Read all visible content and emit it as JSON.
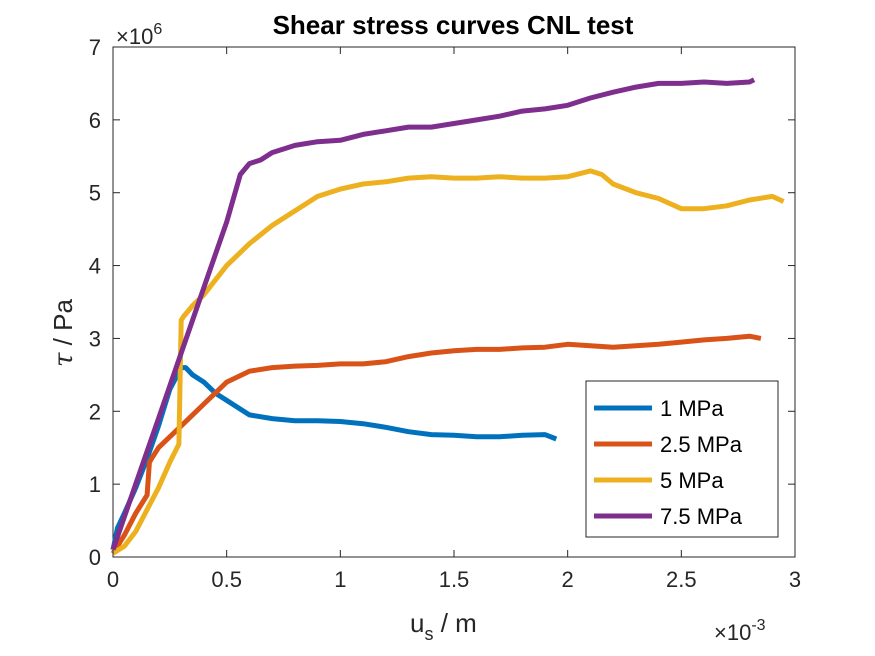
{
  "chart_data": {
    "type": "line",
    "title": "Shear stress curves CNL test",
    "xlabel_main": "u",
    "xlabel_sub": "s",
    "xlabel_rest": " / m",
    "ylabel_symbol": "τ",
    "ylabel_rest": " / Pa",
    "x_multiplier": {
      "base": "×10",
      "exp": "-3"
    },
    "y_multiplier": {
      "base": "×10",
      "exp": "6"
    },
    "xlim": [
      0,
      3
    ],
    "ylim": [
      0,
      7
    ],
    "xticks": [
      0,
      0.5,
      1,
      1.5,
      2,
      2.5,
      3
    ],
    "xtick_labels": [
      "0",
      "0.5",
      "1",
      "1.5",
      "2",
      "2.5",
      "3"
    ],
    "yticks": [
      0,
      1,
      2,
      3,
      4,
      5,
      6,
      7
    ],
    "ytick_labels": [
      "0",
      "1",
      "2",
      "3",
      "4",
      "5",
      "6",
      "7"
    ],
    "legend_position": "bottom-right",
    "grid": false,
    "series": [
      {
        "name": "1 MPa",
        "color": "#0072BD",
        "x": [
          0,
          0.02,
          0.05,
          0.1,
          0.15,
          0.2,
          0.25,
          0.3,
          0.32,
          0.35,
          0.4,
          0.45,
          0.5,
          0.55,
          0.6,
          0.7,
          0.8,
          0.9,
          1.0,
          1.1,
          1.2,
          1.3,
          1.4,
          1.5,
          1.6,
          1.7,
          1.8,
          1.9,
          1.95
        ],
        "y": [
          0.1,
          0.4,
          0.6,
          0.95,
          1.35,
          1.8,
          2.3,
          2.6,
          2.6,
          2.5,
          2.4,
          2.25,
          2.15,
          2.05,
          1.95,
          1.9,
          1.87,
          1.87,
          1.86,
          1.83,
          1.78,
          1.72,
          1.68,
          1.67,
          1.65,
          1.65,
          1.67,
          1.68,
          1.62
        ]
      },
      {
        "name": "2.5 MPa",
        "color": "#D95319",
        "x": [
          0,
          0.05,
          0.1,
          0.15,
          0.16,
          0.17,
          0.2,
          0.25,
          0.3,
          0.35,
          0.4,
          0.45,
          0.5,
          0.6,
          0.7,
          0.8,
          0.9,
          1.0,
          1.1,
          1.2,
          1.3,
          1.4,
          1.5,
          1.6,
          1.7,
          1.8,
          1.9,
          2.0,
          2.1,
          2.2,
          2.3,
          2.4,
          2.5,
          2.6,
          2.7,
          2.8,
          2.85
        ],
        "y": [
          0.05,
          0.3,
          0.6,
          0.85,
          1.3,
          1.35,
          1.5,
          1.65,
          1.8,
          1.95,
          2.1,
          2.25,
          2.4,
          2.55,
          2.6,
          2.62,
          2.63,
          2.65,
          2.65,
          2.68,
          2.75,
          2.8,
          2.83,
          2.85,
          2.85,
          2.87,
          2.88,
          2.92,
          2.9,
          2.88,
          2.9,
          2.92,
          2.95,
          2.98,
          3.0,
          3.03,
          3.0
        ]
      },
      {
        "name": "5 MPa",
        "color": "#EDB120",
        "x": [
          0,
          0.05,
          0.1,
          0.15,
          0.2,
          0.25,
          0.29,
          0.3,
          0.31,
          0.35,
          0.4,
          0.45,
          0.5,
          0.6,
          0.7,
          0.8,
          0.9,
          1.0,
          1.1,
          1.2,
          1.3,
          1.4,
          1.5,
          1.6,
          1.7,
          1.8,
          1.9,
          2.0,
          2.1,
          2.15,
          2.2,
          2.3,
          2.4,
          2.5,
          2.6,
          2.7,
          2.8,
          2.9,
          2.95
        ],
        "y": [
          0.05,
          0.15,
          0.35,
          0.65,
          0.95,
          1.3,
          1.55,
          3.25,
          3.3,
          3.45,
          3.6,
          3.8,
          4.0,
          4.3,
          4.55,
          4.75,
          4.95,
          5.05,
          5.12,
          5.15,
          5.2,
          5.22,
          5.2,
          5.2,
          5.22,
          5.2,
          5.2,
          5.22,
          5.3,
          5.25,
          5.12,
          5.0,
          4.92,
          4.78,
          4.78,
          4.82,
          4.9,
          4.95,
          4.88
        ]
      },
      {
        "name": "7.5 MPa",
        "color": "#7E2F8E",
        "x": [
          0,
          0.1,
          0.2,
          0.3,
          0.4,
          0.5,
          0.56,
          0.6,
          0.65,
          0.7,
          0.8,
          0.9,
          1.0,
          1.1,
          1.2,
          1.3,
          1.4,
          1.5,
          1.6,
          1.7,
          1.8,
          1.9,
          2.0,
          2.1,
          2.2,
          2.3,
          2.4,
          2.5,
          2.6,
          2.7,
          2.8,
          2.82
        ],
        "y": [
          0.1,
          1.0,
          1.9,
          2.8,
          3.7,
          4.6,
          5.25,
          5.4,
          5.45,
          5.55,
          5.65,
          5.7,
          5.72,
          5.8,
          5.85,
          5.9,
          5.9,
          5.95,
          6.0,
          6.05,
          6.12,
          6.15,
          6.2,
          6.3,
          6.38,
          6.45,
          6.5,
          6.5,
          6.52,
          6.5,
          6.52,
          6.55
        ]
      }
    ]
  }
}
